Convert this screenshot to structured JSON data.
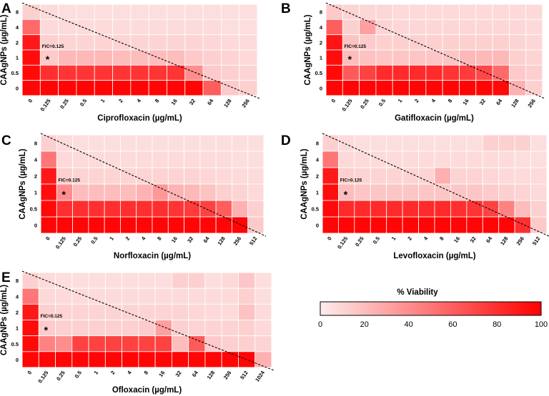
{
  "colors": {
    "low": "#fdecec",
    "high": "#ff0000",
    "grid": "#ffffff",
    "text": "#000000"
  },
  "chart_data": [
    {
      "type": "heatmap",
      "panel": "A",
      "ylabel": "CAAgNPs (µg/mL)",
      "xlabel": "Ciprofloxacin (µg/mL)",
      "y_ticks": [
        "8",
        "4",
        "2",
        "1",
        "0.5",
        "0"
      ],
      "x_ticks": [
        "0",
        "0.125",
        "0.25",
        "0.5",
        "1",
        "2",
        "4",
        "8",
        "16",
        "32",
        "64",
        "128",
        "256"
      ],
      "fic_label": "FIC=0.125",
      "marker": "*",
      "values": [
        [
          12,
          7,
          6,
          6,
          6,
          6,
          6,
          6,
          6,
          6,
          6,
          6,
          6
        ],
        [
          55,
          8,
          7,
          7,
          7,
          7,
          7,
          7,
          7,
          7,
          7,
          6,
          6
        ],
        [
          90,
          12,
          10,
          10,
          10,
          10,
          10,
          10,
          10,
          10,
          9,
          8,
          7
        ],
        [
          95,
          15,
          22,
          22,
          22,
          20,
          20,
          20,
          20,
          15,
          12,
          10,
          8
        ],
        [
          96,
          80,
          78,
          78,
          78,
          78,
          78,
          78,
          78,
          40,
          15,
          12,
          10
        ],
        [
          98,
          98,
          98,
          98,
          98,
          98,
          98,
          98,
          98,
          98,
          60,
          15,
          12
        ]
      ]
    },
    {
      "type": "heatmap",
      "panel": "B",
      "ylabel": "CAAgNPs (µg/mL)",
      "xlabel": "Gatifloxacin (µg/mL)",
      "y_ticks": [
        "8",
        "4",
        "2",
        "1",
        "0.5",
        "0"
      ],
      "x_ticks": [
        "0",
        "0.125",
        "0.25",
        "0.5",
        "1",
        "2",
        "4",
        "8",
        "16",
        "32",
        "64",
        "128",
        "256"
      ],
      "fic_label": "FIC=0.125",
      "marker": "*",
      "values": [
        [
          15,
          10,
          9,
          9,
          8,
          8,
          8,
          8,
          8,
          8,
          8,
          8,
          8
        ],
        [
          60,
          12,
          32,
          10,
          9,
          9,
          9,
          9,
          9,
          9,
          9,
          9,
          8
        ],
        [
          92,
          18,
          14,
          12,
          12,
          12,
          12,
          12,
          12,
          12,
          12,
          10,
          9
        ],
        [
          95,
          20,
          18,
          16,
          16,
          16,
          16,
          16,
          22,
          22,
          22,
          12,
          10
        ],
        [
          96,
          62,
          72,
          82,
          82,
          82,
          82,
          78,
          75,
          70,
          55,
          15,
          12
        ],
        [
          98,
          98,
          98,
          98,
          98,
          98,
          98,
          98,
          98,
          98,
          96,
          25,
          12
        ]
      ]
    },
    {
      "type": "heatmap",
      "panel": "C",
      "ylabel": "CAAgNPs (µg/mL)",
      "xlabel": "Norfloxacin (µg/mL)",
      "y_ticks": [
        "8",
        "4",
        "2",
        "1",
        "0.5",
        "0"
      ],
      "x_ticks": [
        "0",
        "0.125",
        "0.25",
        "0.5",
        "1",
        "2",
        "4",
        "8",
        "16",
        "32",
        "64",
        "128",
        "256",
        "512"
      ],
      "fic_label": "FIC=0.125",
      "marker": "*",
      "values": [
        [
          12,
          7,
          6,
          6,
          6,
          6,
          6,
          6,
          6,
          6,
          6,
          6,
          6,
          6
        ],
        [
          50,
          8,
          7,
          7,
          7,
          7,
          7,
          7,
          7,
          7,
          7,
          7,
          6,
          6
        ],
        [
          90,
          12,
          10,
          10,
          10,
          10,
          10,
          10,
          10,
          10,
          9,
          8,
          7,
          7
        ],
        [
          95,
          40,
          20,
          20,
          20,
          20,
          24,
          36,
          24,
          22,
          18,
          12,
          10,
          8
        ],
        [
          96,
          80,
          80,
          80,
          80,
          80,
          80,
          80,
          78,
          75,
          72,
          60,
          25,
          12
        ],
        [
          98,
          98,
          98,
          98,
          98,
          98,
          98,
          98,
          98,
          98,
          98,
          98,
          98,
          15
        ]
      ]
    },
    {
      "type": "heatmap",
      "panel": "D",
      "ylabel": "CAAgNPs (µg/mL)",
      "xlabel": "Levofloxacin (µg/mL)",
      "y_ticks": [
        "8",
        "4",
        "2",
        "1",
        "0.5",
        "0"
      ],
      "x_ticks": [
        "0",
        "0.125",
        "0.25",
        "0.5",
        "1",
        "2",
        "4",
        "8",
        "16",
        "32",
        "64",
        "128",
        "256",
        "512"
      ],
      "fic_label": "FIC=0.125",
      "marker": "*",
      "values": [
        [
          12,
          7,
          6,
          6,
          6,
          6,
          6,
          6,
          6,
          6,
          12,
          12,
          12,
          6
        ],
        [
          50,
          8,
          7,
          7,
          7,
          7,
          7,
          7,
          7,
          7,
          7,
          7,
          6,
          6
        ],
        [
          90,
          12,
          10,
          10,
          10,
          10,
          10,
          26,
          10,
          10,
          9,
          8,
          7,
          7
        ],
        [
          95,
          20,
          16,
          16,
          16,
          16,
          16,
          16,
          16,
          16,
          14,
          12,
          10,
          8
        ],
        [
          96,
          82,
          82,
          82,
          82,
          82,
          82,
          82,
          80,
          78,
          72,
          45,
          20,
          12
        ],
        [
          98,
          98,
          98,
          98,
          98,
          98,
          98,
          98,
          98,
          98,
          98,
          98,
          80,
          15
        ]
      ]
    },
    {
      "type": "heatmap",
      "panel": "E",
      "ylabel": "CAAgNPs (µg/mL)",
      "xlabel": "Ofloxacin (µg/mL)",
      "y_ticks": [
        "8",
        "4",
        "2",
        "1",
        "0.5",
        "0"
      ],
      "x_ticks": [
        "0",
        "0.125",
        "0.25",
        "0.5",
        "1",
        "2",
        "4",
        "8",
        "16",
        "32",
        "64",
        "128",
        "256",
        "512",
        "1024"
      ],
      "fic_label": "FIC=0.125",
      "marker": "*",
      "values": [
        [
          12,
          7,
          6,
          6,
          6,
          6,
          6,
          6,
          6,
          12,
          12,
          6,
          8,
          16,
          6
        ],
        [
          50,
          8,
          7,
          7,
          7,
          7,
          7,
          7,
          7,
          7,
          7,
          7,
          7,
          12,
          6
        ],
        [
          90,
          12,
          10,
          10,
          10,
          10,
          10,
          10,
          10,
          10,
          9,
          8,
          7,
          18,
          7
        ],
        [
          95,
          14,
          12,
          12,
          12,
          12,
          12,
          14,
          32,
          12,
          10,
          10,
          10,
          12,
          8
        ],
        [
          96,
          45,
          40,
          72,
          72,
          72,
          72,
          72,
          72,
          20,
          62,
          15,
          12,
          12,
          10
        ],
        [
          98,
          98,
          98,
          98,
          98,
          98,
          98,
          98,
          98,
          98,
          98,
          98,
          98,
          98,
          25
        ]
      ]
    }
  ],
  "colorbar": {
    "title": "% Viability",
    "min": 0,
    "max": 100,
    "ticks": [
      "0",
      "20",
      "40",
      "60",
      "80",
      "100"
    ]
  }
}
